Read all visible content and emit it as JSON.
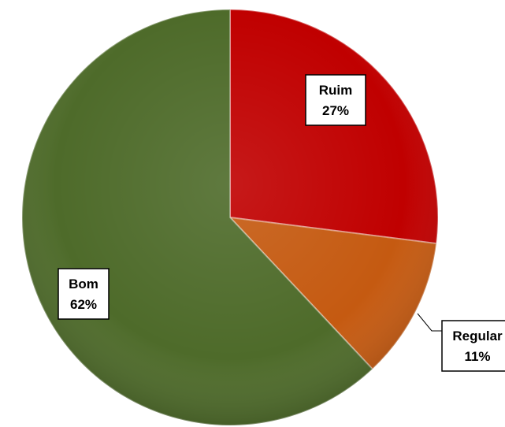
{
  "chart_data": {
    "type": "pie",
    "slices": [
      {
        "label": "Ruim",
        "value": 27,
        "pct_label": "27%",
        "color": "#c00000"
      },
      {
        "label": "Regular",
        "value": 11,
        "pct_label": "11%",
        "color": "#c55a11"
      },
      {
        "label": "Bom",
        "value": 62,
        "pct_label": "62%",
        "color": "#4e6b2a"
      }
    ],
    "start": "top",
    "direction": "clockwise",
    "legend": "none",
    "data_labels": "category-and-percent"
  }
}
